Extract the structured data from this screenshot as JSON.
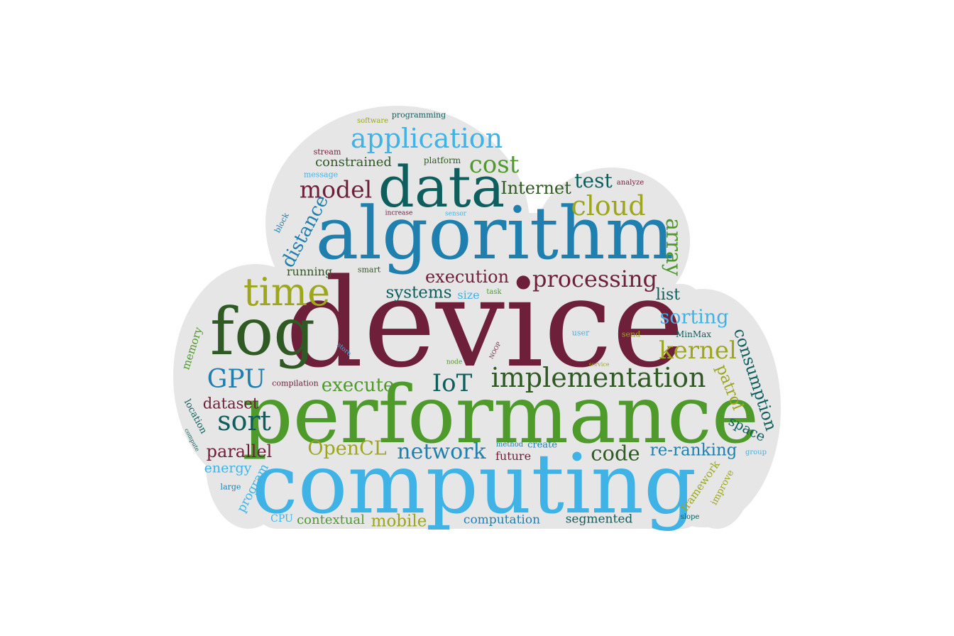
{
  "palette": {
    "maroon": "#6e1f3a",
    "green": "#4e9b2c",
    "blue": "#1f7fae",
    "teal": "#0e5e5e",
    "olive": "#9ea61c",
    "dkgreen": "#2f5a23",
    "sky": "#3fb3e6",
    "cloud_fill": "#e6e6e6"
  },
  "words": [
    {
      "text": "device",
      "color": "maroon"
    },
    {
      "text": "performance",
      "color": "green"
    },
    {
      "text": "computing",
      "color": "sky"
    },
    {
      "text": "algorithm",
      "color": "blue"
    },
    {
      "text": "data",
      "color": "teal"
    },
    {
      "text": "fog",
      "color": "dkgreen"
    },
    {
      "text": "time",
      "color": "olive"
    },
    {
      "text": "application",
      "color": "sky"
    },
    {
      "text": "implementation",
      "color": "dkgreen"
    },
    {
      "text": "processing",
      "color": "maroon"
    },
    {
      "text": "cloud",
      "color": "olive"
    },
    {
      "text": "model",
      "color": "maroon"
    },
    {
      "text": "cost",
      "color": "green"
    },
    {
      "text": "GPU",
      "color": "blue"
    },
    {
      "text": "sort",
      "color": "teal"
    },
    {
      "text": "kernel",
      "color": "olive"
    },
    {
      "text": "IoT",
      "color": "teal"
    },
    {
      "text": "network",
      "color": "blue"
    },
    {
      "text": "execute",
      "color": "green"
    },
    {
      "text": "execution",
      "color": "maroon"
    },
    {
      "text": "Internet",
      "color": "dkgreen"
    },
    {
      "text": "test",
      "color": "teal"
    },
    {
      "text": "sorting",
      "color": "sky"
    },
    {
      "text": "code",
      "color": "dkgreen"
    },
    {
      "text": "OpenCL",
      "color": "olive"
    },
    {
      "text": "re-ranking",
      "color": "blue"
    },
    {
      "text": "systems",
      "color": "teal"
    },
    {
      "text": "parallel",
      "color": "maroon"
    },
    {
      "text": "array",
      "color": "green"
    },
    {
      "text": "distance",
      "color": "blue"
    },
    {
      "text": "consumption",
      "color": "teal"
    },
    {
      "text": "patrol",
      "color": "olive"
    },
    {
      "text": "dataset",
      "color": "maroon"
    },
    {
      "text": "constrained",
      "color": "dkgreen"
    },
    {
      "text": "list",
      "color": "teal"
    },
    {
      "text": "mobile",
      "color": "olive"
    },
    {
      "text": "energy",
      "color": "sky"
    },
    {
      "text": "space",
      "color": "teal"
    },
    {
      "text": "contextual",
      "color": "green"
    },
    {
      "text": "computation",
      "color": "blue"
    },
    {
      "text": "segmented",
      "color": "teal"
    },
    {
      "text": "running",
      "color": "dkgreen"
    },
    {
      "text": "future",
      "color": "maroon"
    },
    {
      "text": "program",
      "color": "sky"
    },
    {
      "text": "framework",
      "color": "olive"
    },
    {
      "text": "memory",
      "color": "green"
    },
    {
      "text": "size",
      "color": "sky"
    },
    {
      "text": "CPU",
      "color": "sky"
    },
    {
      "text": "location",
      "color": "teal"
    },
    {
      "text": "improve",
      "color": "olive"
    },
    {
      "text": "create",
      "color": "blue"
    },
    {
      "text": "platform",
      "color": "dkgreen"
    },
    {
      "text": "programming",
      "color": "teal"
    },
    {
      "text": "smart",
      "color": "dkgreen"
    },
    {
      "text": "MinMax",
      "color": "teal"
    },
    {
      "text": "compilation",
      "color": "maroon"
    },
    {
      "text": "large",
      "color": "blue"
    },
    {
      "text": "message",
      "color": "sky"
    },
    {
      "text": "stream",
      "color": "maroon"
    },
    {
      "text": "user",
      "color": "sky"
    },
    {
      "text": "send",
      "color": "olive"
    },
    {
      "text": "block",
      "color": "blue"
    },
    {
      "text": "group",
      "color": "sky"
    },
    {
      "text": "analyze",
      "color": "maroon"
    },
    {
      "text": "software",
      "color": "olive"
    },
    {
      "text": "method",
      "color": "blue"
    },
    {
      "text": "slope",
      "color": "teal"
    },
    {
      "text": "task",
      "color": "green"
    },
    {
      "text": "increase",
      "color": "maroon"
    },
    {
      "text": "sensor",
      "color": "sky"
    },
    {
      "text": "store",
      "color": "sky"
    },
    {
      "text": "NOOP",
      "color": "maroon"
    },
    {
      "text": "node",
      "color": "green"
    },
    {
      "text": "service",
      "color": "olive"
    },
    {
      "text": "compute",
      "color": "teal"
    }
  ]
}
